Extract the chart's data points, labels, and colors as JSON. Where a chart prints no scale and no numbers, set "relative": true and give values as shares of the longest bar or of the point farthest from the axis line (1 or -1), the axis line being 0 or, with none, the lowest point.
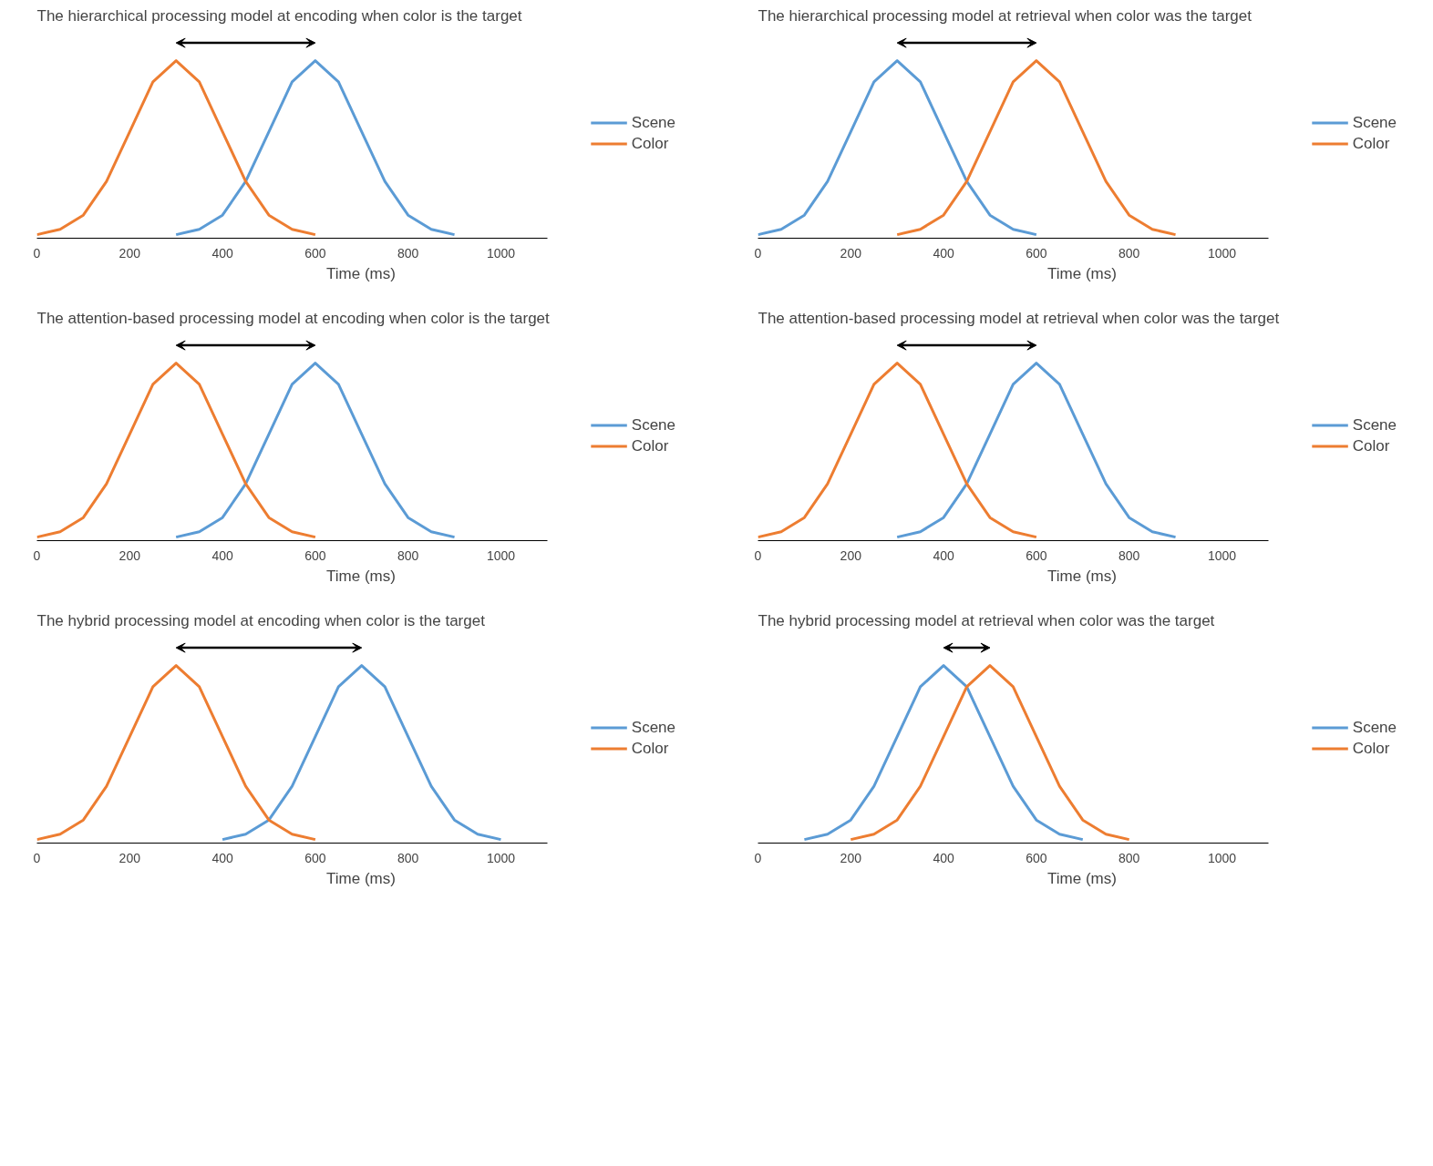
{
  "chart_data": [
    {
      "type": "line",
      "relative": true,
      "title": "The hierarchical processing model at encoding when color is the target",
      "xlabel": "Time (ms)",
      "xlim": [
        0,
        1100
      ],
      "xticks": [
        0,
        200,
        400,
        600,
        800,
        1000
      ],
      "grid": false,
      "legend": "right",
      "marker": "none",
      "line_style": "solid",
      "series": [
        {
          "name": "Scene",
          "color": "#5b9bd5",
          "x": [
            300,
            350,
            400,
            450,
            500,
            550,
            600,
            650,
            700,
            750,
            800,
            850,
            900
          ],
          "values": [
            0.02,
            0.05,
            0.13,
            0.32,
            0.6,
            0.88,
            1,
            0.88,
            0.6,
            0.32,
            0.13,
            0.05,
            0.02
          ]
        },
        {
          "name": "Color",
          "color": "#ed7d31",
          "x": [
            0,
            50,
            100,
            150,
            200,
            250,
            300,
            350,
            400,
            450,
            500,
            550,
            600
          ],
          "values": [
            0.02,
            0.05,
            0.13,
            0.32,
            0.6,
            0.88,
            1,
            0.88,
            0.6,
            0.32,
            0.13,
            0.05,
            0.02
          ]
        }
      ]
    },
    {
      "type": "line",
      "relative": true,
      "title": "The hierarchical processing model at retrieval when color was the target",
      "xlabel": "Time (ms)",
      "xlim": [
        0,
        1100
      ],
      "xticks": [
        0,
        200,
        400,
        600,
        800,
        1000
      ],
      "grid": false,
      "legend": "right",
      "marker": "none",
      "line_style": "solid",
      "tick_labels": "x",
      "series": [
        {
          "name": "Scene",
          "color": "#5b9bd5",
          "x": [
            0,
            50,
            100,
            150,
            200,
            250,
            300,
            350,
            400,
            450,
            500,
            550,
            600
          ],
          "values": [
            0.02,
            0.05,
            0.13,
            0.32,
            0.6,
            0.88,
            1,
            0.88,
            0.6,
            0.32,
            0.13,
            0.05,
            0.02
          ]
        },
        {
          "name": "Color",
          "color": "#ed7d31",
          "x": [
            300,
            350,
            400,
            450,
            500,
            550,
            600,
            650,
            700,
            750,
            800,
            850,
            900
          ],
          "values": [
            0.02,
            0.05,
            0.13,
            0.32,
            0.6,
            0.88,
            1,
            0.88,
            0.6,
            0.32,
            0.13,
            0.05,
            0.02
          ]
        }
      ]
    },
    {
      "type": "line",
      "relative": true,
      "title": "The attention-based processing model at encoding when color is the target",
      "xlabel": "Time (ms)",
      "xlim": [
        0,
        1100
      ],
      "xticks": [
        0,
        200,
        400,
        600,
        800,
        1000
      ],
      "grid": false,
      "legend": "right",
      "marker": "none",
      "line_style": "solid",
      "tick_labels": "x",
      "series": [
        {
          "name": "Scene",
          "color": "#5b9bd5",
          "x": [
            300,
            350,
            400,
            450,
            500,
            550,
            600,
            650,
            700,
            750,
            800,
            850,
            900
          ],
          "values": [
            0.02,
            0.05,
            0.13,
            0.32,
            0.6,
            0.88,
            1,
            0.88,
            0.6,
            0.32,
            0.13,
            0.05,
            0.02
          ]
        },
        {
          "name": "Color",
          "color": "#ed7d31",
          "x": [
            0,
            50,
            100,
            150,
            200,
            250,
            300,
            350,
            400,
            450,
            500,
            550,
            600
          ],
          "values": [
            0.02,
            0.05,
            0.13,
            0.32,
            0.6,
            0.88,
            1,
            0.88,
            0.6,
            0.32,
            0.13,
            0.05,
            0.02
          ]
        }
      ]
    },
    {
      "type": "line",
      "relative": true,
      "title": "The attention-based processing model at retrieval when color was the target",
      "xlabel": "Time (ms)",
      "xlim": [
        0,
        1100
      ],
      "xticks": [
        0,
        200,
        400,
        600,
        800,
        1000
      ],
      "grid": false,
      "legend": "right",
      "marker": "none",
      "line_style": "solid",
      "tick_labels": "x",
      "series": [
        {
          "name": "Scene",
          "color": "#5b9bd5",
          "x": [
            300,
            350,
            400,
            450,
            500,
            550,
            600,
            650,
            700,
            750,
            800,
            850,
            900
          ],
          "values": [
            0.02,
            0.05,
            0.13,
            0.32,
            0.6,
            0.88,
            1,
            0.88,
            0.6,
            0.32,
            0.13,
            0.05,
            0.02
          ]
        },
        {
          "name": "Color",
          "color": "#ed7d31",
          "x": [
            0,
            50,
            100,
            150,
            200,
            250,
            300,
            350,
            400,
            450,
            500,
            550,
            600
          ],
          "values": [
            0.02,
            0.05,
            0.13,
            0.32,
            0.6,
            0.88,
            1,
            0.88,
            0.6,
            0.32,
            0.13,
            0.05,
            0.02
          ]
        }
      ]
    },
    {
      "type": "line",
      "relative": true,
      "title": "The hybrid processing model at encoding when color is the target",
      "xlabel": "Time (ms)",
      "xlim": [
        0,
        1100
      ],
      "xticks": [
        0,
        200,
        400,
        600,
        800,
        1000
      ],
      "grid": false,
      "legend": "right",
      "marker": "none",
      "line_style": "solid",
      "tick_labels": "x",
      "series": [
        {
          "name": "Scene",
          "color": "#5b9bd5",
          "x": [
            400,
            450,
            500,
            550,
            600,
            650,
            700,
            750,
            800,
            850,
            900,
            950,
            1000
          ],
          "values": [
            0.02,
            0.05,
            0.13,
            0.32,
            0.6,
            0.88,
            1,
            0.88,
            0.6,
            0.32,
            0.13,
            0.05,
            0.02
          ]
        },
        {
          "name": "Color",
          "color": "#ed7d31",
          "x": [
            0,
            50,
            100,
            150,
            200,
            250,
            300,
            350,
            400,
            450,
            500,
            550,
            600
          ],
          "values": [
            0.02,
            0.05,
            0.13,
            0.32,
            0.6,
            0.88,
            1,
            0.88,
            0.6,
            0.32,
            0.13,
            0.05,
            0.02
          ]
        }
      ]
    },
    {
      "type": "line",
      "relative": true,
      "title": "The hybrid processing model at retrieval when color was the target",
      "xlabel": "Time (ms)",
      "xlim": [
        0,
        1100
      ],
      "xticks": [
        0,
        200,
        400,
        600,
        800,
        1000
      ],
      "grid": false,
      "legend": "right",
      "marker": "none",
      "line_style": "solid",
      "tick_labels": "x",
      "series": [
        {
          "name": "Scene",
          "color": "#5b9bd5",
          "x": [
            100,
            150,
            200,
            250,
            300,
            350,
            400,
            450,
            500,
            550,
            600,
            650,
            700
          ],
          "values": [
            0.02,
            0.05,
            0.13,
            0.32,
            0.6,
            0.88,
            1,
            0.88,
            0.6,
            0.32,
            0.13,
            0.05,
            0.02
          ]
        },
        {
          "name": "Color",
          "color": "#ed7d31",
          "x": [
            200,
            250,
            300,
            350,
            400,
            450,
            500,
            550,
            600,
            650,
            700,
            750,
            800
          ],
          "values": [
            0.02,
            0.05,
            0.13,
            0.32,
            0.6,
            0.88,
            1,
            0.88,
            0.6,
            0.32,
            0.13,
            0.05,
            0.02
          ]
        }
      ]
    }
  ]
}
